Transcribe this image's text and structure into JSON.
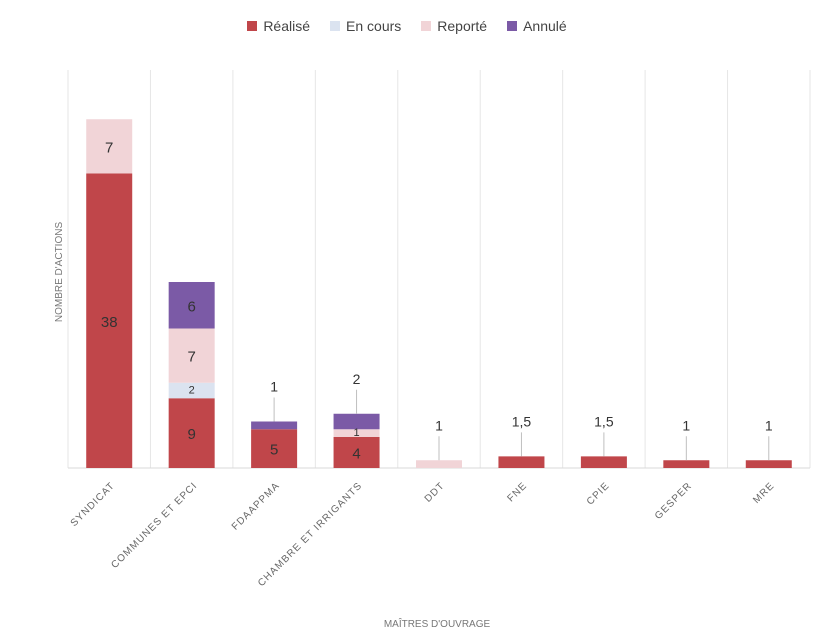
{
  "chart_data": {
    "type": "bar",
    "stacked": true,
    "xlabel": "MAÎTRES D'OUVRAGE",
    "ylabel": "NOMBRE D'ACTIONS",
    "categories": [
      "SYNDICAT",
      "COMMUNES ET EPCI",
      "FDAAPPMA",
      "CHAMBRE ET IRRIGANTS",
      "DDT",
      "FNE",
      "CPIE",
      "GESPER",
      "MRE"
    ],
    "series": [
      {
        "name": "Réalisé",
        "color": "#c0464a",
        "values": [
          38,
          9,
          5,
          4,
          0,
          1.5,
          1.5,
          1,
          1
        ]
      },
      {
        "name": "En cours",
        "color": "#dbe3f0",
        "values": [
          0,
          2,
          0,
          0,
          0,
          0,
          0,
          0,
          0
        ]
      },
      {
        "name": "Reporté",
        "color": "#f1d4d7",
        "values": [
          7,
          7,
          0,
          1,
          1,
          0,
          0,
          0,
          0
        ]
      },
      {
        "name": "Annulé",
        "color": "#7b5aa6",
        "values": [
          0,
          6,
          1,
          2,
          0,
          0,
          0,
          0,
          0
        ]
      }
    ],
    "segment_labels": [
      {
        "category": 0,
        "series": 0,
        "text": "38"
      },
      {
        "category": 0,
        "series": 2,
        "text": "7"
      },
      {
        "category": 1,
        "series": 0,
        "text": "9"
      },
      {
        "category": 1,
        "series": 2,
        "text": "7"
      },
      {
        "category": 1,
        "series": 1,
        "text": "2"
      },
      {
        "category": 1,
        "series": 3,
        "text": "6"
      },
      {
        "category": 2,
        "series": 0,
        "text": "5"
      },
      {
        "category": 3,
        "series": 0,
        "text": "4"
      },
      {
        "category": 3,
        "series": 2,
        "text": "1"
      }
    ],
    "callout_labels": [
      {
        "category": 2,
        "text": "1"
      },
      {
        "category": 3,
        "text": "2"
      },
      {
        "category": 4,
        "text": "1"
      },
      {
        "category": 5,
        "text": "1,5"
      },
      {
        "category": 6,
        "text": "1,5"
      },
      {
        "category": 7,
        "text": "1"
      },
      {
        "category": 8,
        "text": "1"
      }
    ],
    "ylim": [
      0,
      45
    ],
    "grid": "vertical",
    "legend_position": "top-center"
  }
}
